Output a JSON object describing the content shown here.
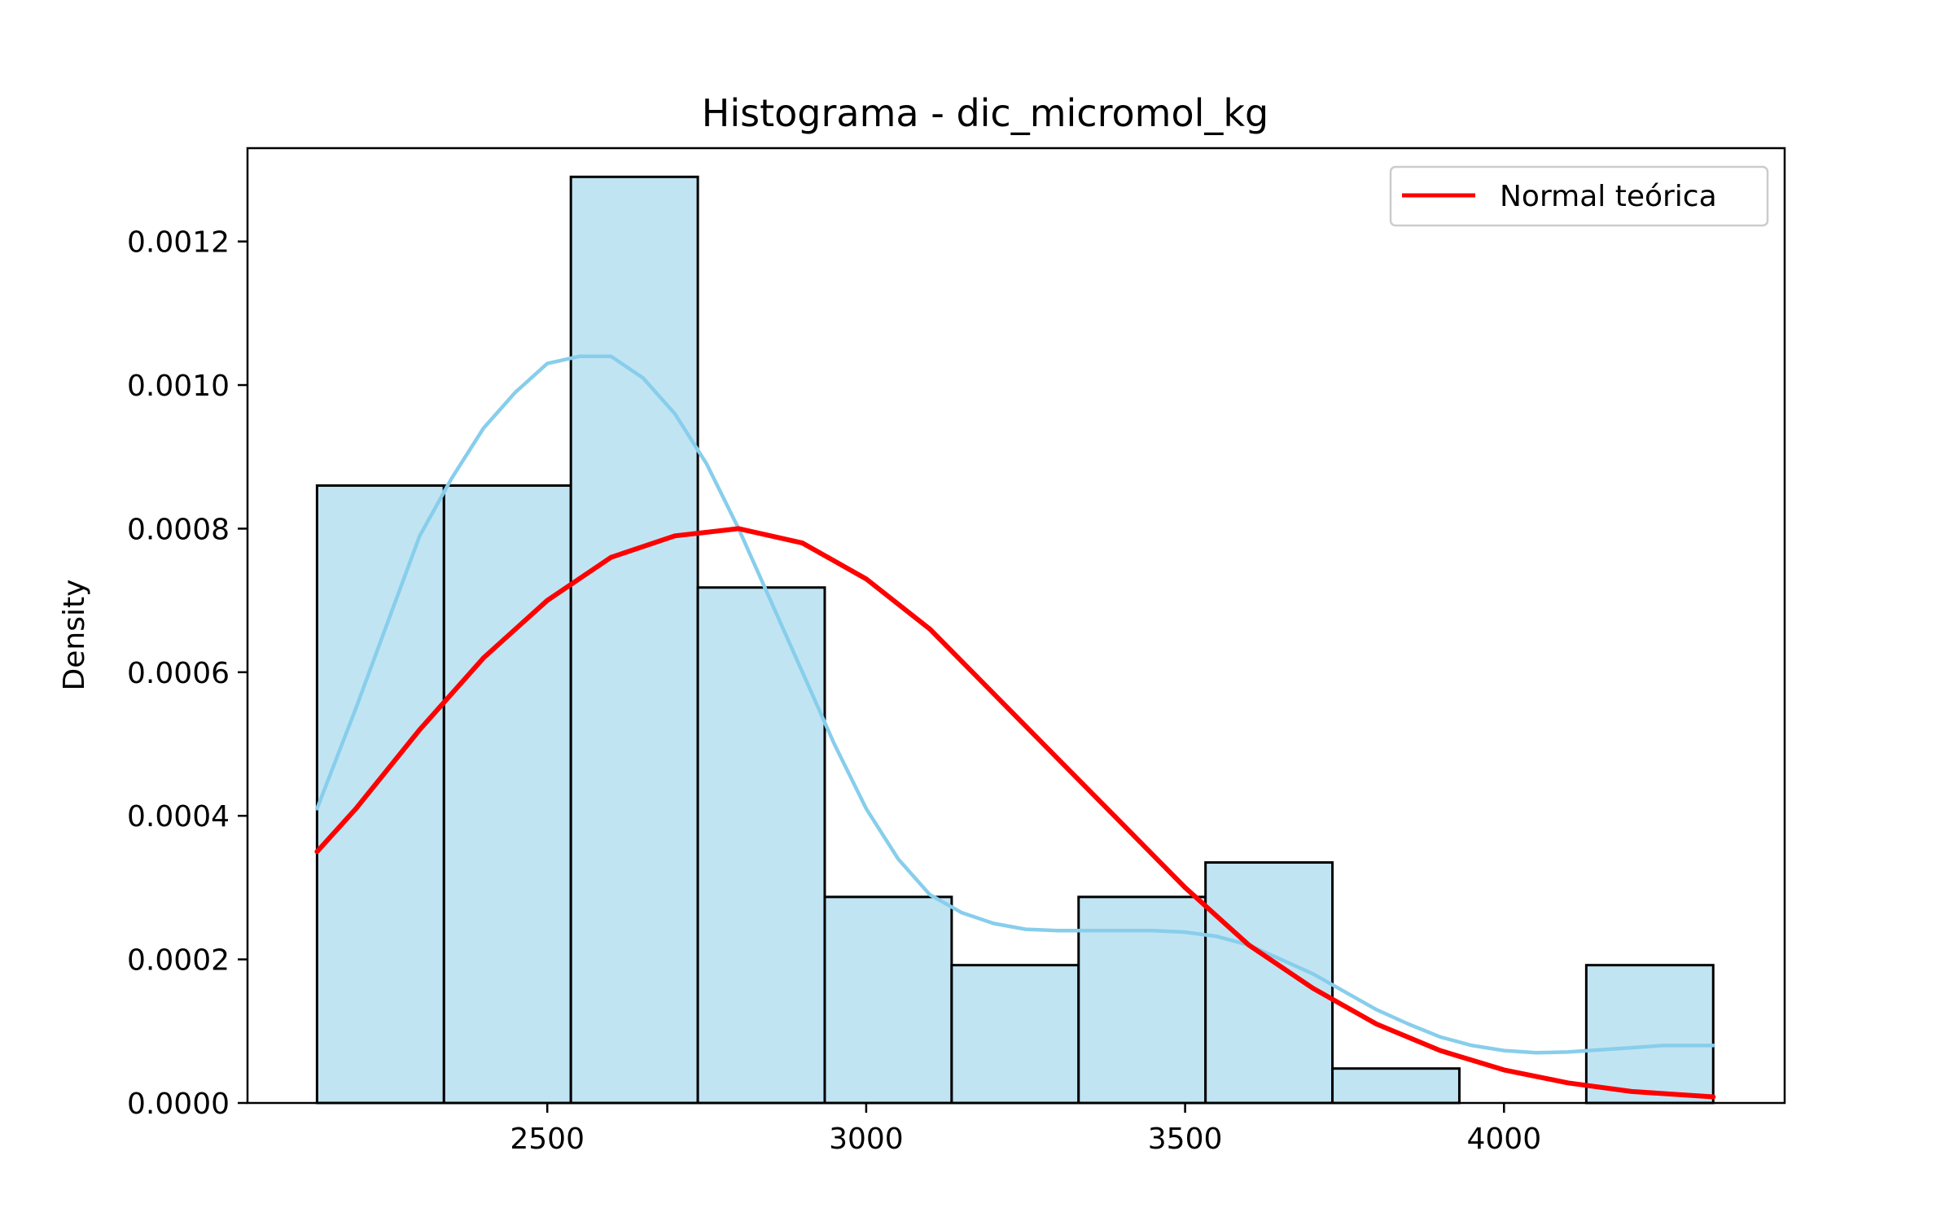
{
  "chart_data": {
    "type": "bar",
    "title": "Histograma - dic_micromol_kg",
    "xlabel": "",
    "ylabel": "Density",
    "xlim": [
      2030,
      4440
    ],
    "ylim": [
      0,
      0.00133
    ],
    "xticks": [
      2500,
      3000,
      3500,
      4000
    ],
    "xtick_labels": [
      "2500",
      "3000",
      "3500",
      "4000"
    ],
    "yticks": [
      0,
      0.0002,
      0.0004,
      0.0006,
      0.0008,
      0.001,
      0.0012
    ],
    "ytick_labels": [
      "0.0000",
      "0.0002",
      "0.0004",
      "0.0006",
      "0.0008",
      "0.0010",
      "0.0012"
    ],
    "grid": false,
    "legend_position": "top-right",
    "bins": {
      "edges": [
        2139,
        2338,
        2537,
        2736,
        2935,
        3134,
        3333,
        3532,
        3731,
        3930,
        4129,
        4328
      ],
      "density": [
        0.00086,
        0.00086,
        0.00129,
        0.000718,
        0.000287,
        0.000192,
        0.000287,
        0.000335,
        4.8e-05,
        0.0,
        0.000192
      ]
    },
    "series": [
      {
        "name": "",
        "type": "kde",
        "x": [
          2139,
          2200,
          2250,
          2300,
          2350,
          2400,
          2450,
          2500,
          2550,
          2600,
          2650,
          2700,
          2750,
          2800,
          2850,
          2900,
          2950,
          3000,
          3050,
          3100,
          3150,
          3200,
          3250,
          3300,
          3350,
          3400,
          3450,
          3500,
          3550,
          3600,
          3650,
          3700,
          3750,
          3800,
          3850,
          3900,
          3950,
          4000,
          4050,
          4100,
          4150,
          4200,
          4250,
          4328
        ],
        "y": [
          0.00041,
          0.00055,
          0.00067,
          0.00079,
          0.00087,
          0.00094,
          0.00099,
          0.00103,
          0.00104,
          0.00104,
          0.00101,
          0.00096,
          0.00089,
          0.0008,
          0.0007,
          0.0006,
          0.0005,
          0.00041,
          0.00034,
          0.00029,
          0.000265,
          0.00025,
          0.000242,
          0.00024,
          0.00024,
          0.00024,
          0.00024,
          0.000238,
          0.000232,
          0.00022,
          0.0002,
          0.00018,
          0.000155,
          0.00013,
          0.00011,
          9.2e-05,
          8e-05,
          7.3e-05,
          7e-05,
          7.1e-05,
          7.4e-05,
          7.7e-05,
          8e-05,
          8e-05
        ],
        "color": "#87ceeb"
      },
      {
        "name": "Normal teórica",
        "type": "line",
        "x": [
          2139,
          2200,
          2300,
          2400,
          2500,
          2600,
          2700,
          2800,
          2900,
          3000,
          3100,
          3200,
          3300,
          3400,
          3500,
          3600,
          3700,
          3800,
          3900,
          4000,
          4100,
          4200,
          4328
        ],
        "y": [
          0.00035,
          0.00041,
          0.00052,
          0.00062,
          0.0007,
          0.00076,
          0.00079,
          0.0008,
          0.00078,
          0.00073,
          0.00066,
          0.00057,
          0.00048,
          0.00039,
          0.0003,
          0.00022,
          0.00016,
          0.00011,
          7.3e-05,
          4.6e-05,
          2.8e-05,
          1.6e-05,
          8.5e-06
        ],
        "color": "#ff0000"
      }
    ],
    "colors": {
      "bar_fill": "#c1e4f3",
      "bar_edge": "#000000",
      "kde": "#87ceeb",
      "normal": "#ff0000"
    }
  }
}
